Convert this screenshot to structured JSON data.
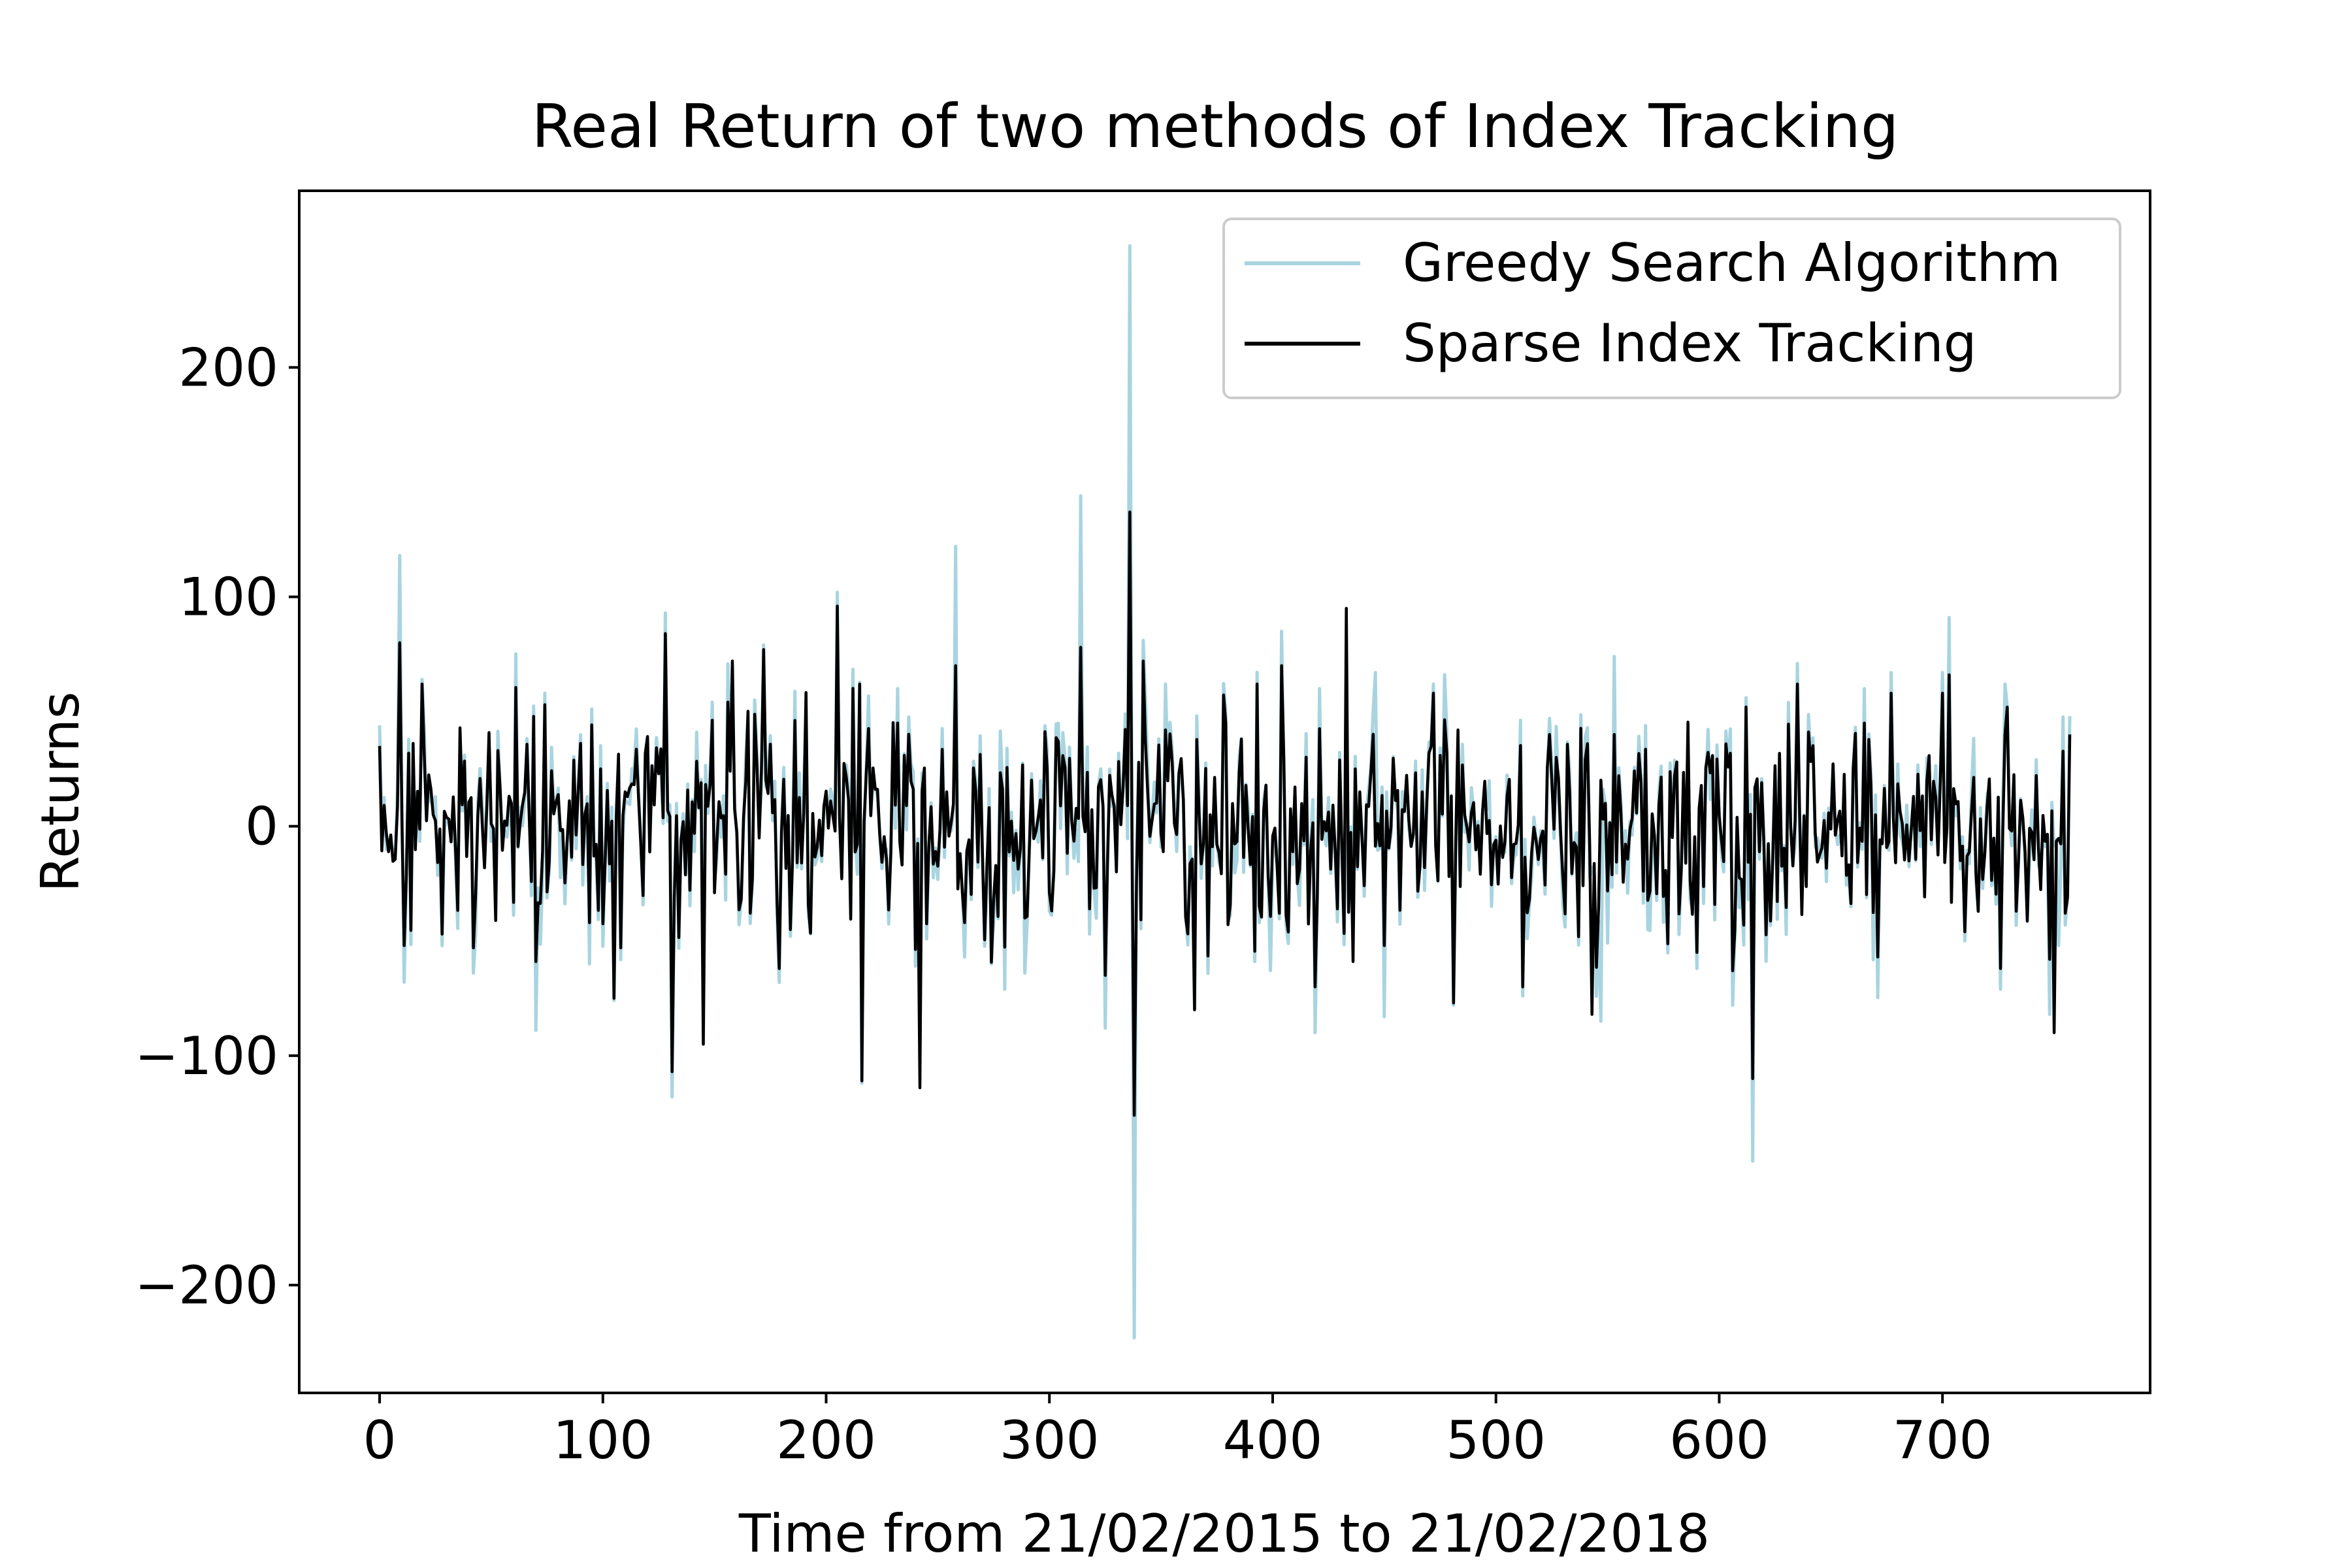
{
  "chart_data": {
    "type": "line",
    "title": "Real Return of two methods of Index Tracking",
    "xlabel": "Time from 21/02/2015 to 21/02/2018",
    "ylabel": "Returns",
    "xlim": [
      -36,
      793
    ],
    "ylim": [
      -247,
      277
    ],
    "xticks": [
      0,
      100,
      200,
      300,
      400,
      500,
      600,
      700
    ],
    "xtick_labels": [
      "0",
      "100",
      "200",
      "300",
      "400",
      "500",
      "600",
      "700"
    ],
    "yticks": [
      -200,
      -100,
      0,
      100,
      200
    ],
    "ytick_labels": [
      "−200",
      "−100",
      "0",
      "100",
      "200"
    ],
    "grid": false,
    "legend_position": "top-right",
    "series": [
      {
        "name": "Greedy Search Algorithm",
        "color": "#a8d4e0",
        "values": []
      },
      {
        "name": "Sparse Index Tracking",
        "color": "#000000",
        "values": []
      }
    ],
    "n_points": 758,
    "anchors": {
      "Greedy Search Algorithm": [
        [
          0,
          44
        ],
        [
          3,
          -10
        ],
        [
          9,
          118
        ],
        [
          11,
          -68
        ],
        [
          19,
          64
        ],
        [
          28,
          -52
        ],
        [
          42,
          -64
        ],
        [
          70,
          -89
        ],
        [
          74,
          58
        ],
        [
          94,
          -60
        ],
        [
          105,
          -76
        ],
        [
          128,
          93
        ],
        [
          131,
          -118
        ],
        [
          145,
          -95
        ],
        [
          158,
          70
        ],
        [
          172,
          79
        ],
        [
          184,
          -48
        ],
        [
          205,
          102
        ],
        [
          216,
          -112
        ],
        [
          232,
          60
        ],
        [
          242,
          -97
        ],
        [
          258,
          122
        ],
        [
          262,
          -57
        ],
        [
          289,
          -64
        ],
        [
          314,
          144
        ],
        [
          318,
          -47
        ],
        [
          325,
          -88
        ],
        [
          336,
          253
        ],
        [
          338,
          -223
        ],
        [
          342,
          81
        ],
        [
          352,
          62
        ],
        [
          365,
          -80
        ],
        [
          404,
          85
        ],
        [
          419,
          -90
        ],
        [
          446,
          67
        ],
        [
          450,
          -83
        ],
        [
          472,
          62
        ],
        [
          481,
          -78
        ],
        [
          512,
          -74
        ],
        [
          524,
          47
        ],
        [
          547,
          -85
        ],
        [
          553,
          74
        ],
        [
          590,
          -62
        ],
        [
          606,
          -78
        ],
        [
          612,
          56
        ],
        [
          615,
          -146
        ],
        [
          635,
          71
        ],
        [
          665,
          60
        ],
        [
          677,
          67
        ],
        [
          700,
          67
        ],
        [
          703,
          91
        ],
        [
          710,
          -50
        ],
        [
          728,
          62
        ],
        [
          748,
          -82
        ],
        [
          752,
          -52
        ],
        [
          757,
          48
        ]
      ],
      "Sparse Index Tracking": [
        [
          0,
          35
        ],
        [
          3,
          -3
        ],
        [
          9,
          80
        ],
        [
          11,
          -52
        ],
        [
          19,
          62
        ],
        [
          28,
          -47
        ],
        [
          42,
          -53
        ],
        [
          70,
          -59
        ],
        [
          74,
          53
        ],
        [
          94,
          -42
        ],
        [
          105,
          -75
        ],
        [
          128,
          84
        ],
        [
          131,
          -107
        ],
        [
          145,
          -95
        ],
        [
          158,
          72
        ],
        [
          172,
          77
        ],
        [
          184,
          -45
        ],
        [
          205,
          96
        ],
        [
          216,
          -111
        ],
        [
          232,
          45
        ],
        [
          242,
          -114
        ],
        [
          258,
          70
        ],
        [
          262,
          -42
        ],
        [
          289,
          -40
        ],
        [
          314,
          78
        ],
        [
          318,
          -36
        ],
        [
          325,
          -65
        ],
        [
          336,
          137
        ],
        [
          338,
          -126
        ],
        [
          342,
          72
        ],
        [
          352,
          42
        ],
        [
          365,
          -80
        ],
        [
          404,
          70
        ],
        [
          419,
          -70
        ],
        [
          433,
          95
        ],
        [
          436,
          -59
        ],
        [
          450,
          -52
        ],
        [
          472,
          58
        ],
        [
          481,
          -77
        ],
        [
          512,
          -70
        ],
        [
          524,
          40
        ],
        [
          543,
          -82
        ],
        [
          553,
          40
        ],
        [
          590,
          -55
        ],
        [
          606,
          -63
        ],
        [
          612,
          52
        ],
        [
          615,
          -110
        ],
        [
          635,
          62
        ],
        [
          665,
          45
        ],
        [
          677,
          58
        ],
        [
          700,
          58
        ],
        [
          703,
          66
        ],
        [
          710,
          -46
        ],
        [
          728,
          40
        ],
        [
          748,
          -58
        ],
        [
          750,
          -90
        ],
        [
          757,
          40
        ]
      ]
    }
  }
}
